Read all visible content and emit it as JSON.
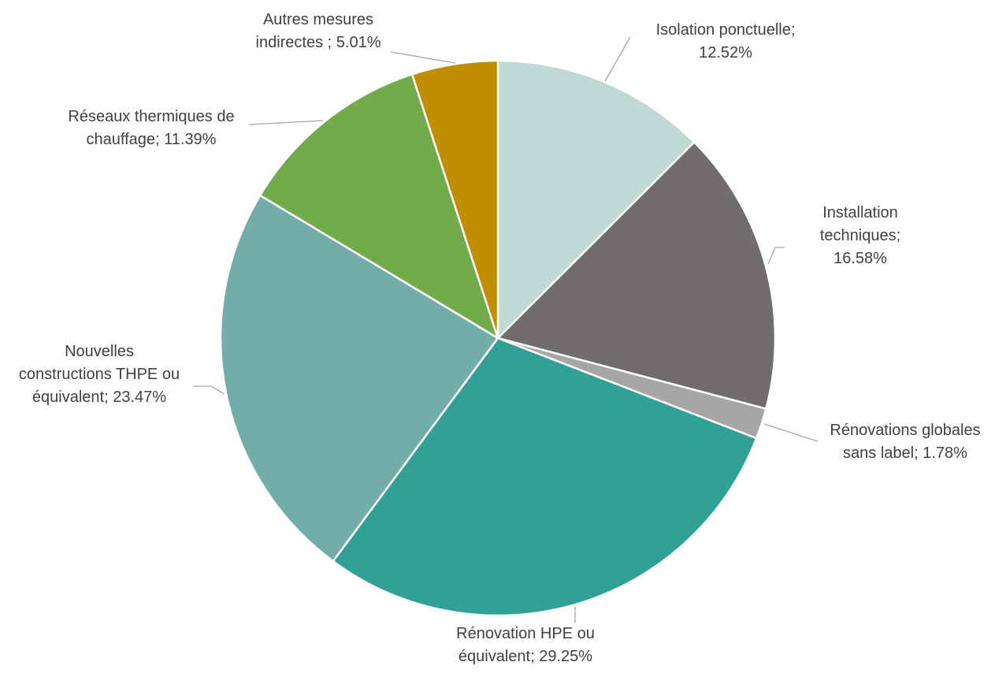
{
  "chart_data": {
    "type": "pie",
    "title": "",
    "start_angle_deg": 0,
    "direction": "clockwise",
    "slices": [
      {
        "label_lines": [
          "Isolation ponctuelle;",
          "12.52%"
        ],
        "category": "Isolation ponctuelle",
        "value": 12.52,
        "color": "#c0d9d5"
      },
      {
        "label_lines": [
          "Installation",
          "techniques;",
          "16.58%"
        ],
        "category": "Installation techniques",
        "value": 16.58,
        "color": "#716d6c"
      },
      {
        "label_lines": [
          "Rénovations globales",
          "sans label; 1.78%"
        ],
        "category": "Rénovations globales sans label",
        "value": 1.78,
        "color": "#a6a6a6"
      },
      {
        "label_lines": [
          "Rénovation HPE ou",
          "équivalent; 29.25%"
        ],
        "category": "Rénovation HPE ou équivalent",
        "value": 29.25,
        "color": "#33a097"
      },
      {
        "label_lines": [
          "Nouvelles",
          "constructions THPE ou",
          "équivalent; 23.47%"
        ],
        "category": "Nouvelles constructions THPE ou équivalent",
        "value": 23.47,
        "color": "#72ada9"
      },
      {
        "label_lines": [
          "Réseaux thermiques de",
          "chauffage; 11.39%"
        ],
        "category": "Réseaux thermiques de chauffage",
        "value": 11.39,
        "color": "#72ac4a"
      },
      {
        "label_lines": [
          "Autres mesures",
          "indirectes ; 5.01%"
        ],
        "category": "Autres mesures indirectes",
        "value": 5.01,
        "color": "#bf8f00"
      }
    ]
  }
}
